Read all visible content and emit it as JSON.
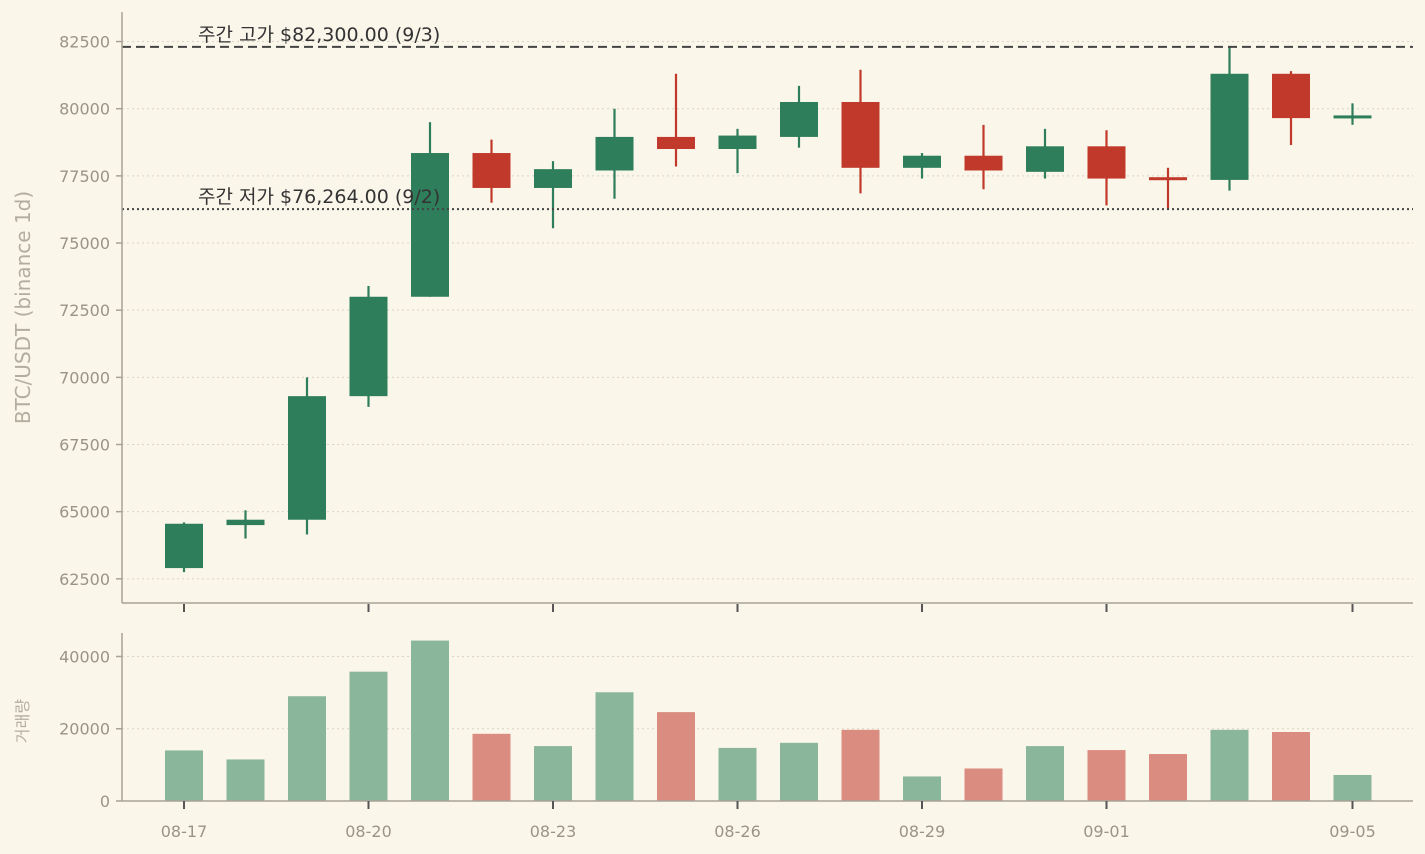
{
  "chart_data": {
    "type": "candlestick",
    "ylabel": "BTC/USDT (binance 1d)",
    "volume_ylabel": "거래량",
    "price_ylim": [
      61600,
      83600
    ],
    "price_yticks": [
      62500,
      65000,
      67500,
      70000,
      72500,
      75000,
      77500,
      80000,
      82500
    ],
    "volume_ylim": [
      0,
      46500
    ],
    "volume_yticks": [
      0,
      20000,
      40000
    ],
    "dates": [
      "08-17",
      "08-18",
      "08-19",
      "08-20",
      "08-21",
      "08-22",
      "08-23",
      "08-24",
      "08-25",
      "08-26",
      "08-27",
      "08-28",
      "08-29",
      "08-30",
      "08-31",
      "09-01",
      "09-02",
      "09-03",
      "09-04",
      "09-05"
    ],
    "xtick_labels": [
      "08-17",
      "08-20",
      "08-23",
      "08-26",
      "08-29",
      "09-01",
      "09-05"
    ],
    "ohlc": [
      {
        "o": 62900,
        "h": 64600,
        "l": 62750,
        "c": 64550
      },
      {
        "o": 64500,
        "h": 65050,
        "l": 64000,
        "c": 64700
      },
      {
        "o": 64700,
        "h": 70000,
        "l": 64150,
        "c": 69300
      },
      {
        "o": 69300,
        "h": 73400,
        "l": 68900,
        "c": 73000
      },
      {
        "o": 73000,
        "h": 79500,
        "l": 73000,
        "c": 78350
      },
      {
        "o": 78350,
        "h": 78850,
        "l": 76500,
        "c": 77050
      },
      {
        "o": 77050,
        "h": 78050,
        "l": 75550,
        "c": 77750
      },
      {
        "o": 77700,
        "h": 80000,
        "l": 76650,
        "c": 78950
      },
      {
        "o": 78950,
        "h": 81300,
        "l": 77850,
        "c": 78500
      },
      {
        "o": 78500,
        "h": 79250,
        "l": 77600,
        "c": 79000
      },
      {
        "o": 78950,
        "h": 80850,
        "l": 78550,
        "c": 80250
      },
      {
        "o": 80250,
        "h": 81450,
        "l": 76850,
        "c": 77800
      },
      {
        "o": 77800,
        "h": 78350,
        "l": 77400,
        "c": 78250
      },
      {
        "o": 78250,
        "h": 79400,
        "l": 77000,
        "c": 77700
      },
      {
        "o": 77650,
        "h": 79250,
        "l": 77400,
        "c": 78600
      },
      {
        "o": 78600,
        "h": 79200,
        "l": 76400,
        "c": 77400
      },
      {
        "o": 77450,
        "h": 77800,
        "l": 76264,
        "c": 77350
      },
      {
        "o": 77350,
        "h": 82300,
        "l": 76950,
        "c": 81300
      },
      {
        "o": 81300,
        "h": 81400,
        "l": 78650,
        "c": 79650
      },
      {
        "o": 79650,
        "h": 80200,
        "l": 79400,
        "c": 79750
      }
    ],
    "volume": [
      14000,
      11500,
      29000,
      35800,
      44400,
      18600,
      15200,
      30100,
      24600,
      14700,
      16100,
      19700,
      6800,
      9000,
      15200,
      14100,
      13000,
      19700,
      19100,
      7200
    ],
    "annotations": [
      {
        "label": "주간 고가 $82,300.00 (9/3)",
        "value": 82300,
        "style": "dashed"
      },
      {
        "label": "주간 저가 $76,264.00 (9/2)",
        "value": 76264,
        "style": "dotted"
      }
    ],
    "grid": true,
    "colors": {
      "up": "#2e7d5b",
      "down": "#c0392b",
      "volume_up": "#8ab79c",
      "volume_down": "#da8c80",
      "background": "#faf6ea"
    }
  }
}
